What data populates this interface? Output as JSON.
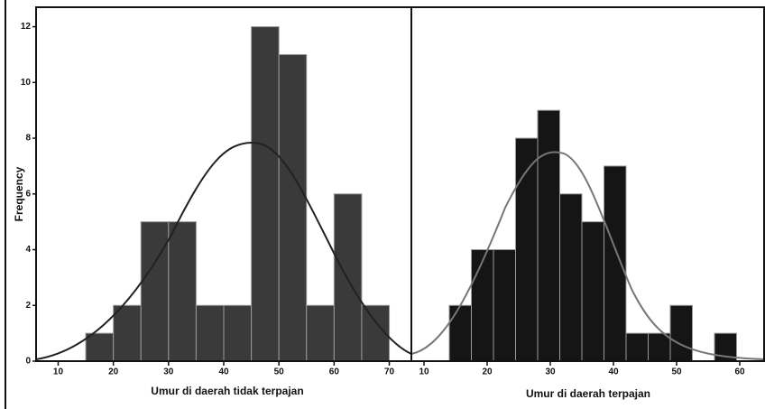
{
  "chart_data": [
    {
      "type": "histogram",
      "xlabel": "Umur di daerah tidak terpajan",
      "ylabel": "Frequency",
      "bins": [
        15,
        20,
        25,
        30,
        35,
        40,
        45,
        50,
        55,
        60,
        65,
        70
      ],
      "values": [
        1,
        2,
        5,
        5,
        2,
        2,
        12,
        11,
        2,
        6,
        2
      ],
      "color": "#3a3a3a",
      "xlim": [
        6,
        74
      ],
      "xticks": [
        10,
        20,
        30,
        40,
        50,
        60,
        70
      ],
      "ylim": [
        0,
        12.7
      ],
      "yticks": [
        0,
        2,
        4,
        6,
        8,
        10,
        12
      ]
    },
    {
      "type": "histogram",
      "xlabel": "Umur di daerah terpajan",
      "bins": [
        14,
        17.5,
        21,
        24.5,
        28,
        31.5,
        35,
        38.5,
        42,
        45.5,
        49,
        52.5,
        56,
        59.5
      ],
      "values": [
        2,
        4,
        4,
        8,
        9,
        6,
        5,
        7,
        1,
        1,
        2,
        0,
        1
      ],
      "color": "#151515",
      "xlim": [
        8,
        64
      ],
      "xticks": [
        10,
        20,
        30,
        40,
        50,
        60
      ],
      "ylim": [
        0,
        12.7
      ]
    }
  ]
}
